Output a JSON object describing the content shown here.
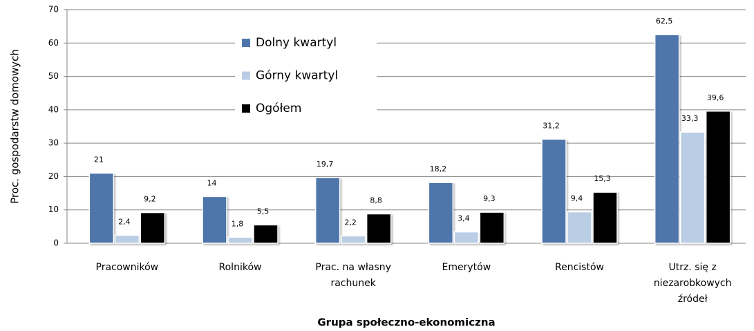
{
  "chart_data": {
    "type": "bar",
    "categories": [
      "Pracowników",
      "Rolników",
      "Prac. na własny rachunek",
      "Emerytów",
      "Rencistów",
      "Utrz. się z niezarobkowych źródeł"
    ],
    "series": [
      {
        "name": "Dolny kwartyl",
        "color": "#4f76ab",
        "values": [
          21,
          14,
          19.7,
          18.2,
          31.2,
          62.5
        ],
        "value_labels": [
          "21",
          "14",
          "19,7",
          "18,2",
          "31,2",
          "62,5"
        ]
      },
      {
        "name": "Górny kwartyl",
        "color": "#b9cde5",
        "values": [
          2.4,
          1.8,
          2.2,
          3.4,
          9.4,
          33.3
        ],
        "value_labels": [
          "2,4",
          "1,8",
          "2,2",
          "3,4",
          "9,4",
          "33,3"
        ]
      },
      {
        "name": "Ogółem",
        "color": "#000000",
        "values": [
          9.2,
          5.5,
          8.8,
          9.3,
          15.3,
          39.6
        ],
        "value_labels": [
          "9,2",
          "5,5",
          "8,8",
          "9,3",
          "15,3",
          "39,6"
        ]
      }
    ],
    "xlabel": "Grupa społeczno-ekonomiczna",
    "ylabel": "Proc.  gospodarstw domowych",
    "ylim": [
      0,
      70
    ],
    "yticks": [
      0,
      10,
      20,
      30,
      40,
      50,
      60,
      70
    ],
    "grid": true
  }
}
